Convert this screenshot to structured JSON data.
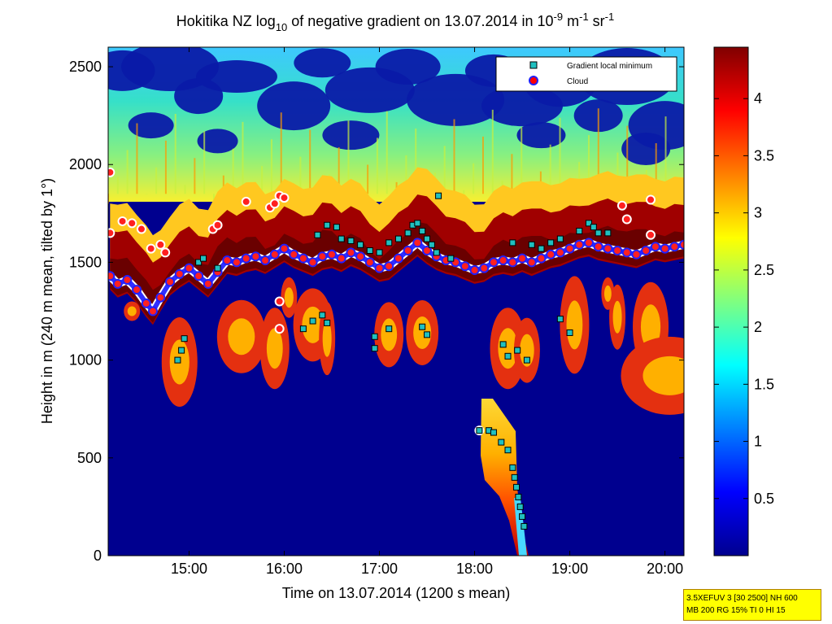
{
  "chart_data": {
    "type": "heatmap",
    "title_parts": {
      "pre": "Hokitika NZ log",
      "sub": "10",
      "mid": " of negative gradient on 13.07.2014 in 10",
      "exp1": "-9",
      "m": " m",
      "exp2": "-1",
      "sr": " sr",
      "exp3": "-1"
    },
    "xlabel": "Time on 13.07.2014 (1200 s mean)",
    "ylabel": "Height in m (240 m mean, tilted by 1°)",
    "x_range_hours": [
      14.15,
      20.2
    ],
    "x_ticks": [
      {
        "v": 15,
        "label": "15:00"
      },
      {
        "v": 16,
        "label": "16:00"
      },
      {
        "v": 17,
        "label": "17:00"
      },
      {
        "v": 18,
        "label": "18:00"
      },
      {
        "v": 19,
        "label": "19:00"
      },
      {
        "v": 20,
        "label": "20:00"
      }
    ],
    "ylim": [
      0,
      2600
    ],
    "y_ticks": [
      0,
      500,
      1000,
      1500,
      2000,
      2500
    ],
    "colorbar": {
      "range": [
        0,
        4.45
      ],
      "ticks": [
        {
          "v": 0.5,
          "label": "0.5"
        },
        {
          "v": 1,
          "label": "1"
        },
        {
          "v": 1.5,
          "label": "1.5"
        },
        {
          "v": 2,
          "label": "2"
        },
        {
          "v": 2.5,
          "label": "2.5"
        },
        {
          "v": 3,
          "label": "3"
        },
        {
          "v": 3.5,
          "label": "3.5"
        },
        {
          "v": 4,
          "label": "4"
        }
      ],
      "colormap": "jet"
    },
    "legend": {
      "position": "top-right",
      "entries": [
        {
          "label": "Gradient local minimum",
          "marker": "square",
          "color": "#20c0c0"
        },
        {
          "label": "Cloud",
          "marker": "circle",
          "color": "#ff0000"
        }
      ]
    },
    "layers": {
      "cloud_base_height_m": [
        [
          14.17,
          1430
        ],
        [
          14.25,
          1390
        ],
        [
          14.35,
          1410
        ],
        [
          14.45,
          1360
        ],
        [
          14.55,
          1290
        ],
        [
          14.62,
          1250
        ],
        [
          14.7,
          1320
        ],
        [
          14.8,
          1400
        ],
        [
          14.9,
          1440
        ],
        [
          15.0,
          1470
        ],
        [
          15.1,
          1430
        ],
        [
          15.2,
          1390
        ],
        [
          15.3,
          1450
        ],
        [
          15.4,
          1510
        ],
        [
          15.5,
          1500
        ],
        [
          15.6,
          1520
        ],
        [
          15.7,
          1530
        ],
        [
          15.8,
          1510
        ],
        [
          15.9,
          1540
        ],
        [
          16.0,
          1570
        ],
        [
          16.1,
          1540
        ],
        [
          16.2,
          1520
        ],
        [
          16.3,
          1500
        ],
        [
          16.4,
          1530
        ],
        [
          16.5,
          1540
        ],
        [
          16.6,
          1520
        ],
        [
          16.7,
          1550
        ],
        [
          16.8,
          1530
        ],
        [
          16.9,
          1500
        ],
        [
          17.0,
          1470
        ],
        [
          17.1,
          1480
        ],
        [
          17.2,
          1520
        ],
        [
          17.3,
          1560
        ],
        [
          17.4,
          1600
        ],
        [
          17.5,
          1560
        ],
        [
          17.6,
          1530
        ],
        [
          17.7,
          1510
        ],
        [
          17.8,
          1500
        ],
        [
          17.9,
          1480
        ],
        [
          18.0,
          1460
        ],
        [
          18.1,
          1470
        ],
        [
          18.2,
          1500
        ],
        [
          18.3,
          1510
        ],
        [
          18.4,
          1500
        ],
        [
          18.5,
          1520
        ],
        [
          18.6,
          1500
        ],
        [
          18.7,
          1520
        ],
        [
          18.8,
          1540
        ],
        [
          18.9,
          1550
        ],
        [
          19.0,
          1570
        ],
        [
          19.1,
          1590
        ],
        [
          19.2,
          1600
        ],
        [
          19.3,
          1580
        ],
        [
          19.4,
          1570
        ],
        [
          19.5,
          1560
        ],
        [
          19.6,
          1550
        ],
        [
          19.7,
          1540
        ],
        [
          19.8,
          1560
        ],
        [
          19.9,
          1580
        ],
        [
          20.0,
          1570
        ],
        [
          20.1,
          1580
        ],
        [
          20.2,
          1590
        ]
      ],
      "cloud_upper_points_m": [
        [
          14.17,
          1960
        ],
        [
          14.17,
          1650
        ],
        [
          14.3,
          1710
        ],
        [
          14.4,
          1700
        ],
        [
          14.5,
          1670
        ],
        [
          14.6,
          1570
        ],
        [
          14.7,
          1590
        ],
        [
          14.75,
          1550
        ],
        [
          15.25,
          1670
        ],
        [
          15.3,
          1690
        ],
        [
          15.6,
          1810
        ],
        [
          15.85,
          1780
        ],
        [
          15.9,
          1800
        ],
        [
          15.95,
          1840
        ],
        [
          16.0,
          1830
        ],
        [
          15.95,
          1300
        ],
        [
          15.95,
          1160
        ],
        [
          19.55,
          1790
        ],
        [
          19.6,
          1720
        ],
        [
          19.85,
          1820
        ],
        [
          19.85,
          1640
        ]
      ],
      "gradient_minimum_points": [
        [
          14.88,
          1000
        ],
        [
          14.92,
          1050
        ],
        [
          14.95,
          1110
        ],
        [
          15.1,
          1500
        ],
        [
          15.15,
          1520
        ],
        [
          15.3,
          1470
        ],
        [
          16.2,
          1160
        ],
        [
          16.3,
          1200
        ],
        [
          16.4,
          1230
        ],
        [
          16.45,
          1190
        ],
        [
          16.35,
          1640
        ],
        [
          16.45,
          1690
        ],
        [
          16.55,
          1680
        ],
        [
          16.6,
          1620
        ],
        [
          16.7,
          1610
        ],
        [
          16.8,
          1590
        ],
        [
          16.9,
          1560
        ],
        [
          17.0,
          1550
        ],
        [
          16.95,
          1120
        ],
        [
          17.1,
          1600
        ],
        [
          17.2,
          1620
        ],
        [
          17.3,
          1650
        ],
        [
          17.35,
          1690
        ],
        [
          17.4,
          1700
        ],
        [
          17.45,
          1660
        ],
        [
          17.5,
          1620
        ],
        [
          17.55,
          1590
        ],
        [
          17.62,
          1840
        ],
        [
          17.6,
          1550
        ],
        [
          17.75,
          1520
        ],
        [
          18.05,
          640
        ],
        [
          18.15,
          640
        ],
        [
          18.2,
          630
        ],
        [
          18.28,
          580
        ],
        [
          18.35,
          540
        ],
        [
          18.4,
          450
        ],
        [
          18.42,
          400
        ],
        [
          18.44,
          350
        ],
        [
          18.46,
          300
        ],
        [
          18.48,
          250
        ],
        [
          18.5,
          200
        ],
        [
          18.52,
          150
        ],
        [
          18.3,
          1080
        ],
        [
          18.35,
          1020
        ],
        [
          18.45,
          1050
        ],
        [
          18.55,
          1000
        ],
        [
          18.4,
          1600
        ],
        [
          18.6,
          1590
        ],
        [
          18.7,
          1570
        ],
        [
          18.8,
          1600
        ],
        [
          18.9,
          1620
        ],
        [
          19.1,
          1660
        ],
        [
          19.2,
          1700
        ],
        [
          19.25,
          1680
        ],
        [
          19.3,
          1650
        ],
        [
          19.4,
          1650
        ],
        [
          18.9,
          1210
        ],
        [
          19.0,
          1140
        ],
        [
          17.5,
          1130
        ],
        [
          17.45,
          1170
        ],
        [
          16.95,
          1060
        ],
        [
          17.1,
          1160
        ]
      ],
      "bright_low_cloud_point": [
        18.05,
        640
      ]
    }
  },
  "info_box": {
    "line1": "3.5XEFUV 3 [30 2500] NH 600",
    "line2": "MB 200 RG 15% TI 0 HI 15"
  }
}
